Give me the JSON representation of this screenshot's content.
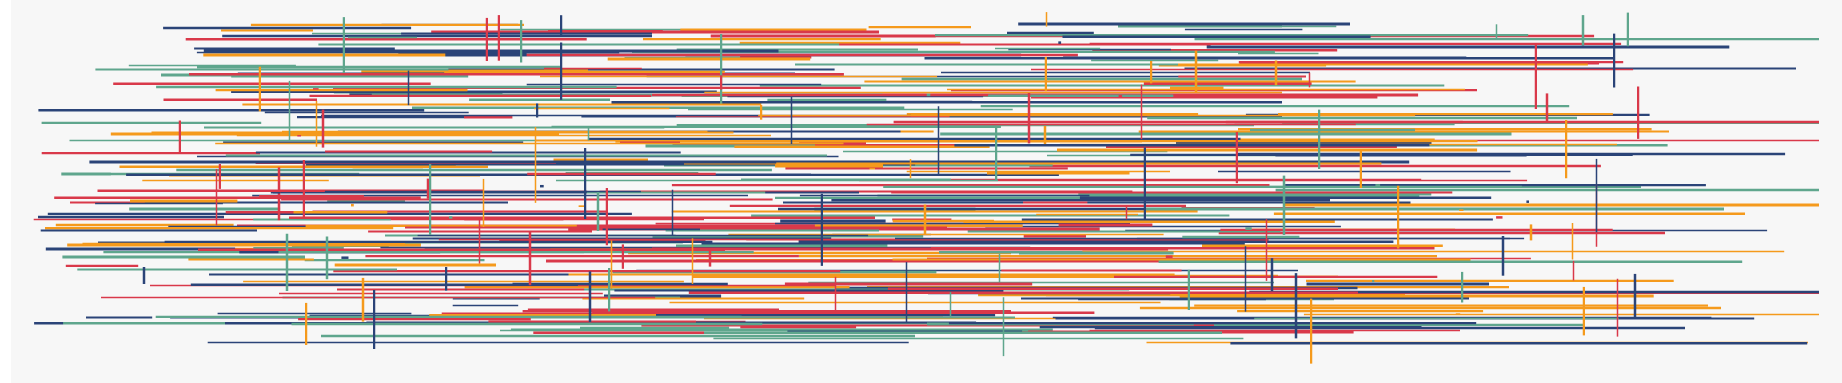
{
  "artwork": {
    "palette": {
      "navy": "#2b4478",
      "red": "#d9394a",
      "orange": "#f59a1c",
      "teal": "#5fa68d"
    },
    "background": "#f7f7f7"
  }
}
